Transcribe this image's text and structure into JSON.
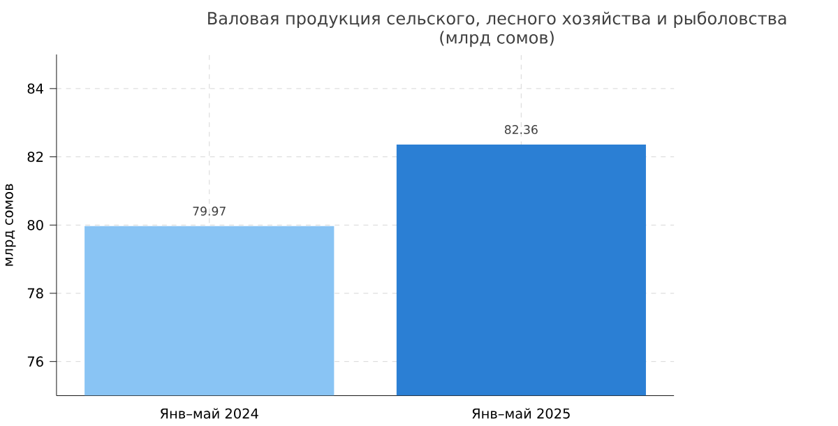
{
  "chart_data": {
    "type": "bar",
    "title": "Валовая продукция сельского, лесного хозяйства и рыболовства",
    "subtitle": "(млрд сомов)",
    "ylabel": "млрд сомов",
    "categories": [
      "Янв–май 2024",
      "Янв–май 2025"
    ],
    "values": [
      79.97,
      82.36
    ],
    "colors": [
      "#89c4f4",
      "#2b7fd4"
    ],
    "ylim": [
      75,
      85
    ],
    "yticks": [
      76,
      78,
      80,
      82,
      84
    ],
    "grid": true,
    "data_labels": true
  }
}
